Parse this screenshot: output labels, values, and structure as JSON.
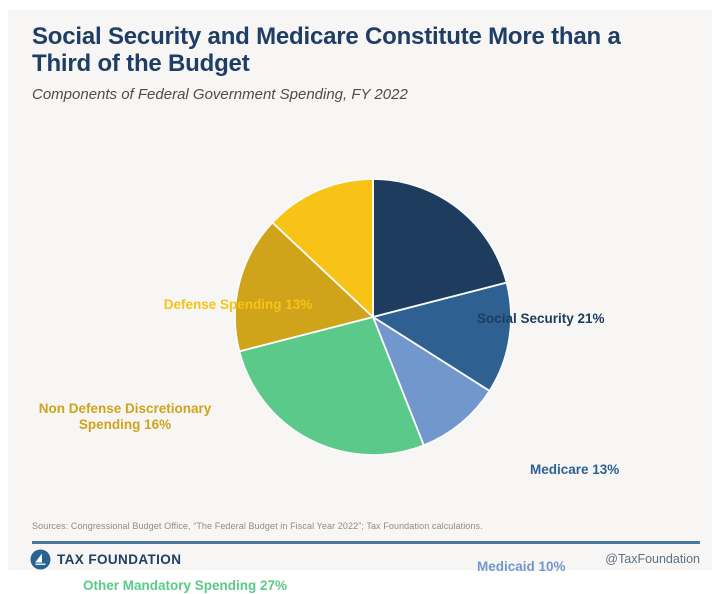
{
  "header": {
    "title": "Social Security and Medicare Constitute More than a Third of the Budget",
    "subtitle": "Components of Federal Government Spending, FY 2022"
  },
  "chart_data": {
    "type": "pie",
    "title": "Social Security and Medicare Constitute More than a Third of the Budget",
    "subtitle": "Components of Federal Government Spending, FY 2022",
    "start_angle_deg": 0,
    "direction": "clockwise",
    "unit": "%",
    "total": 100,
    "slices": [
      {
        "label": "Social Security",
        "value": 21,
        "color": "#1d3c5e",
        "display": "Social Security 21%"
      },
      {
        "label": "Medicare",
        "value": 13,
        "color": "#2e6191",
        "display": "Medicare 13%"
      },
      {
        "label": "Medicaid",
        "value": 10,
        "color": "#7297cd",
        "display": "Medicaid 10%"
      },
      {
        "label": "Other Mandatory Spending",
        "value": 27,
        "color": "#5bc98a",
        "display": "Other Mandatory Spending 27%"
      },
      {
        "label": "Non Defense Discretionary Spending",
        "value": 16,
        "color": "#cfa41a",
        "display": "Non Defense Discretionary Spending 16%"
      },
      {
        "label": "Defense Spending",
        "value": 13,
        "color": "#f6c316",
        "display": "Defense Spending 13%"
      }
    ],
    "legend_position": "labels-around-pie",
    "divider_color": "#fbfbfa"
  },
  "footer": {
    "sources": "Sources: Congressional Budget Office, “The Federal Budget in Fiscal Year 2022”; Tax Foundation calculations.",
    "brand": "TAX FOUNDATION",
    "handle": "@TaxFoundation"
  },
  "colors": {
    "card_background": "#f7f6f4",
    "page_background": "#ffffff",
    "title_navy": "#1e3e66",
    "rule_blue": "#4c779b",
    "subtitle_gray": "#4d4d4d",
    "sources_gray": "#8c8c8c"
  }
}
